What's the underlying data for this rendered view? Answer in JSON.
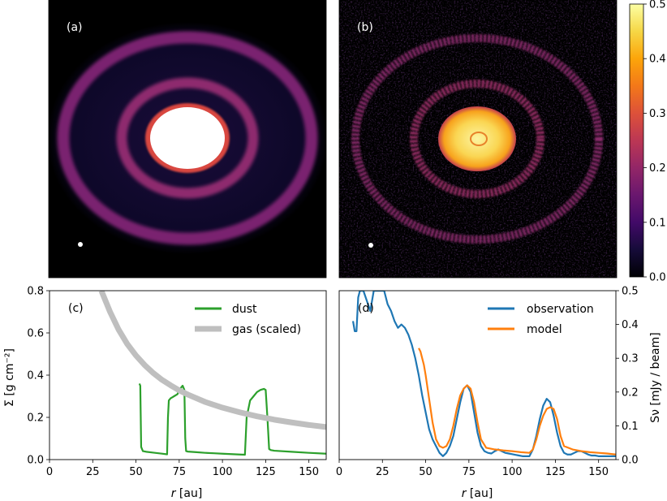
{
  "panels": {
    "a": {
      "tag": "(a)"
    },
    "b": {
      "tag": "(b)"
    }
  },
  "colorbar": {
    "ticks": [
      "0.0",
      "0.1",
      "0.2",
      "0.3",
      "0.4",
      "0.5"
    ],
    "range": [
      0,
      0.5
    ],
    "colormap": "inferno"
  },
  "images": {
    "a": {
      "background": "#000000",
      "rings_au": [
        75,
        120
      ],
      "inner_disk_au": 52
    },
    "b": {
      "background": "#000000",
      "rings_au": [
        75,
        120
      ],
      "inner_disk_au": 52,
      "noisy": true
    }
  },
  "chart_data": [
    {
      "id": "c",
      "type": "line",
      "tag": "(c)",
      "xlabel": "r [au]",
      "xlabel_italic": "r",
      "xlabel_unit": "[au]",
      "ylabel": "Σ [g cm⁻²]",
      "xlim": [
        0,
        160
      ],
      "ylim": [
        0,
        0.8
      ],
      "xticks": [
        0,
        25,
        50,
        75,
        100,
        125,
        150
      ],
      "yticks": [
        0.0,
        0.2,
        0.4,
        0.6,
        0.8
      ],
      "ytick_labels": [
        "0.0",
        "0.2",
        "0.4",
        "0.6",
        "0.8"
      ],
      "legend_position": "top-right",
      "series": [
        {
          "name": "dust",
          "color": "#2ca02c",
          "x": [
            52,
            52.5,
            53,
            54,
            56,
            60,
            65,
            68,
            68.5,
            69,
            70,
            71,
            72,
            74,
            75,
            76,
            77,
            78,
            78.5,
            79,
            80,
            85,
            90,
            95,
            100,
            105,
            110,
            113,
            114,
            116,
            118,
            120,
            122,
            124,
            125,
            126,
            127,
            128,
            130,
            140,
            150,
            160
          ],
          "y": [
            0.36,
            0.35,
            0.06,
            0.04,
            0.037,
            0.033,
            0.028,
            0.025,
            0.2,
            0.28,
            0.29,
            0.295,
            0.3,
            0.31,
            0.33,
            0.34,
            0.35,
            0.33,
            0.1,
            0.04,
            0.038,
            0.035,
            0.032,
            0.03,
            0.028,
            0.026,
            0.024,
            0.023,
            0.2,
            0.28,
            0.3,
            0.32,
            0.33,
            0.335,
            0.33,
            0.2,
            0.05,
            0.045,
            0.042,
            0.037,
            0.032,
            0.028
          ]
        },
        {
          "name": "gas (scaled)",
          "color": "#bfbfbf",
          "x": [
            30,
            35,
            40,
            45,
            50,
            55,
            60,
            65,
            70,
            75,
            80,
            90,
            100,
            110,
            120,
            130,
            140,
            150,
            160
          ],
          "y": [
            0.8,
            0.7,
            0.615,
            0.547,
            0.493,
            0.448,
            0.41,
            0.378,
            0.352,
            0.328,
            0.308,
            0.273,
            0.246,
            0.224,
            0.205,
            0.189,
            0.176,
            0.164,
            0.154
          ]
        }
      ]
    },
    {
      "id": "d",
      "type": "line",
      "tag": "(d)",
      "xlabel": "r [au]",
      "xlabel_italic": "r",
      "xlabel_unit": "[au]",
      "ylabel": "Sν [mJy / beam]",
      "xlim": [
        0,
        160
      ],
      "ylim": [
        0,
        0.5
      ],
      "xticks": [
        0,
        25,
        50,
        75,
        100,
        125,
        150
      ],
      "yticks": [
        0.0,
        0.1,
        0.2,
        0.3,
        0.4,
        0.5
      ],
      "ytick_labels": [
        "0.0",
        "0.1",
        "0.2",
        "0.3",
        "0.4",
        "0.5"
      ],
      "legend_position": "top-right",
      "series": [
        {
          "name": "observation",
          "color": "#1f77b4",
          "x": [
            8,
            9,
            10,
            11,
            12,
            14,
            16,
            18,
            20,
            22,
            24,
            26,
            28,
            30,
            32,
            34,
            36,
            38,
            40,
            42,
            44,
            46,
            48,
            50,
            52,
            54,
            56,
            58,
            60,
            62,
            64,
            66,
            68,
            70,
            72,
            74,
            76,
            78,
            80,
            82,
            84,
            86,
            88,
            90,
            92,
            94,
            96,
            98,
            100,
            102,
            104,
            106,
            108,
            110,
            112,
            114,
            116,
            118,
            120,
            122,
            124,
            126,
            128,
            130,
            132,
            134,
            136,
            138,
            140,
            142,
            144,
            146,
            148,
            150,
            155,
            160
          ],
          "y": [
            0.41,
            0.38,
            0.38,
            0.48,
            0.5,
            0.5,
            0.47,
            0.44,
            0.5,
            0.5,
            0.5,
            0.5,
            0.46,
            0.44,
            0.41,
            0.39,
            0.4,
            0.39,
            0.37,
            0.34,
            0.3,
            0.25,
            0.19,
            0.14,
            0.09,
            0.06,
            0.04,
            0.02,
            0.01,
            0.02,
            0.04,
            0.07,
            0.12,
            0.17,
            0.21,
            0.22,
            0.2,
            0.14,
            0.08,
            0.04,
            0.025,
            0.02,
            0.018,
            0.025,
            0.03,
            0.025,
            0.02,
            0.018,
            0.016,
            0.014,
            0.012,
            0.01,
            0.01,
            0.01,
            0.03,
            0.07,
            0.12,
            0.16,
            0.18,
            0.17,
            0.13,
            0.08,
            0.04,
            0.02,
            0.015,
            0.015,
            0.02,
            0.025,
            0.025,
            0.02,
            0.015,
            0.012,
            0.012,
            0.01,
            0.01,
            0.01
          ]
        },
        {
          "name": "model",
          "color": "#ff7f0e",
          "x": [
            46,
            47,
            48,
            49,
            50,
            52,
            54,
            56,
            58,
            60,
            62,
            64,
            66,
            68,
            70,
            72,
            74,
            76,
            78,
            80,
            82,
            85,
            90,
            95,
            100,
            105,
            110,
            112,
            114,
            116,
            118,
            120,
            122,
            124,
            126,
            128,
            130,
            135,
            140,
            145,
            150,
            155,
            160
          ],
          "y": [
            0.33,
            0.32,
            0.3,
            0.28,
            0.25,
            0.18,
            0.11,
            0.06,
            0.04,
            0.035,
            0.04,
            0.06,
            0.1,
            0.15,
            0.19,
            0.21,
            0.22,
            0.21,
            0.17,
            0.11,
            0.06,
            0.035,
            0.03,
            0.027,
            0.025,
            0.022,
            0.02,
            0.03,
            0.06,
            0.1,
            0.13,
            0.15,
            0.155,
            0.15,
            0.12,
            0.07,
            0.04,
            0.03,
            0.025,
            0.022,
            0.02,
            0.018,
            0.015
          ]
        }
      ]
    }
  ]
}
